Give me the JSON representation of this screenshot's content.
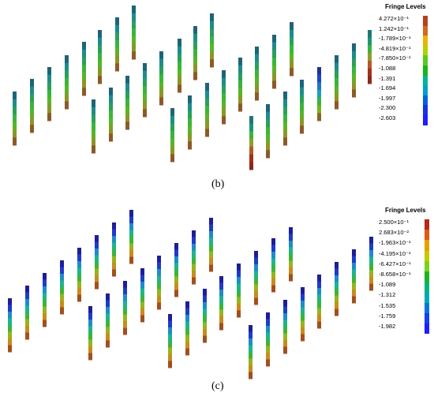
{
  "panels": [
    {
      "caption": "(b)",
      "legend": {
        "title": "Fringe Levels",
        "labels": [
          "4.272×10⁻¹",
          "1.242×10⁻¹",
          "-1.789×10⁻¹",
          "-4.819×10⁻¹",
          "-7.850×10⁻¹",
          "-1.088",
          "-1.391",
          "-1.694",
          "-1.997",
          "-2.300",
          "-2.603"
        ],
        "colors": [
          "#b4411e",
          "#d2691e",
          "#e8b400",
          "#b0d400",
          "#5cc81c",
          "#18b418",
          "#00b496",
          "#00a0c8",
          "#0064dc",
          "#1432e6",
          "#1e1eff"
        ]
      }
    },
    {
      "caption": "(c)",
      "legend": {
        "title": "Fringe Levels",
        "labels": [
          "2.500×10⁻¹",
          "2.683×10⁻²",
          "-1.963×10⁻¹",
          "-4.195×10⁻¹",
          "-6.427×10⁻¹",
          "-8.658×10⁻¹",
          "-1.089",
          "-1.312",
          "-1.535",
          "-1.759",
          "-1.982"
        ],
        "colors": [
          "#b4281e",
          "#e05a14",
          "#e8a000",
          "#c8c800",
          "#78d21e",
          "#1eb41e",
          "#00b478",
          "#00aab4",
          "#0078dc",
          "#1440f0",
          "#1e1eff"
        ]
      }
    }
  ],
  "palettes": {
    "pile_b": [
      "#1e6478",
      "#1e8c8c",
      "#2aa05a",
      "#3cb43c",
      "#5ab428",
      "#8c9628",
      "#8c5a28"
    ],
    "pile_c": [
      "#1e1e96",
      "#1e3cc8",
      "#1e8cc8",
      "#1eb48c",
      "#3cb43c",
      "#96b41e",
      "#c88c1e",
      "#a0501e"
    ],
    "pile_b_blue": [
      "#1e3296",
      "#1e46c8",
      "#1e78c8",
      "#1ea0b4",
      "#3cb43c",
      "#78b41e",
      "#8c6428"
    ],
    "pile_b_red": [
      "#1e7878",
      "#1e9678",
      "#3cb43c",
      "#8ca028",
      "#b45a28",
      "#a0321e",
      "#8c281e"
    ]
  }
}
